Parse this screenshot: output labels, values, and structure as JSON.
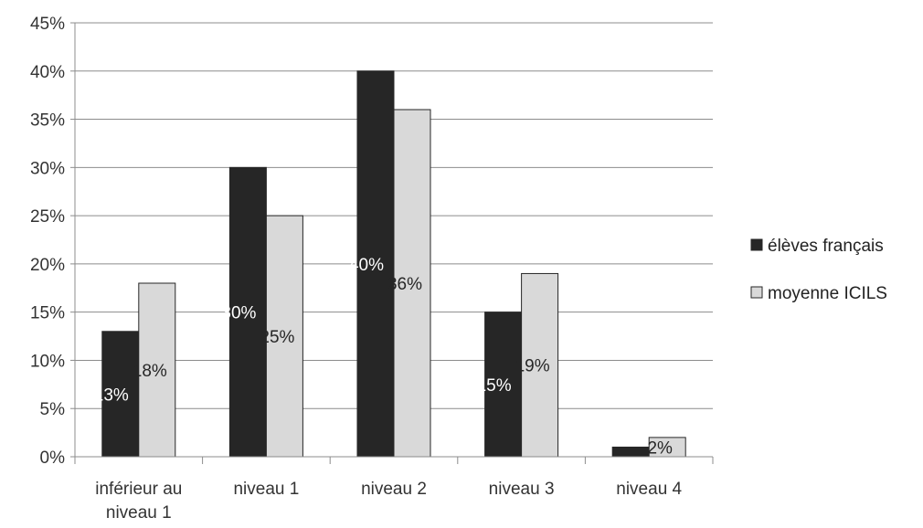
{
  "chart_data": {
    "type": "bar",
    "title": "",
    "xlabel": "",
    "ylabel": "",
    "ylim": [
      0,
      45
    ],
    "yticks": [
      "0%",
      "5%",
      "10%",
      "15%",
      "20%",
      "25%",
      "30%",
      "35%",
      "40%",
      "45%"
    ],
    "categories": [
      [
        "inférieur au",
        "niveau 1"
      ],
      [
        "niveau 1"
      ],
      [
        "niveau 2"
      ],
      [
        "niveau 3"
      ],
      [
        "niveau 4"
      ]
    ],
    "series": [
      {
        "name": "élèves français",
        "color": "#262626",
        "label_color": "#ffffff",
        "values": [
          13,
          30,
          40,
          15,
          1
        ],
        "labels": [
          "13%",
          "30%",
          "40%",
          "15%",
          ""
        ]
      },
      {
        "name": "moyenne ICILS",
        "color": "#d9d9d9",
        "label_color": "#262626",
        "values": [
          18,
          25,
          36,
          19,
          2
        ],
        "labels": [
          "18%",
          "25%",
          "36%",
          "19%",
          "2%"
        ]
      }
    ],
    "grid": true,
    "legend_position": "right"
  }
}
